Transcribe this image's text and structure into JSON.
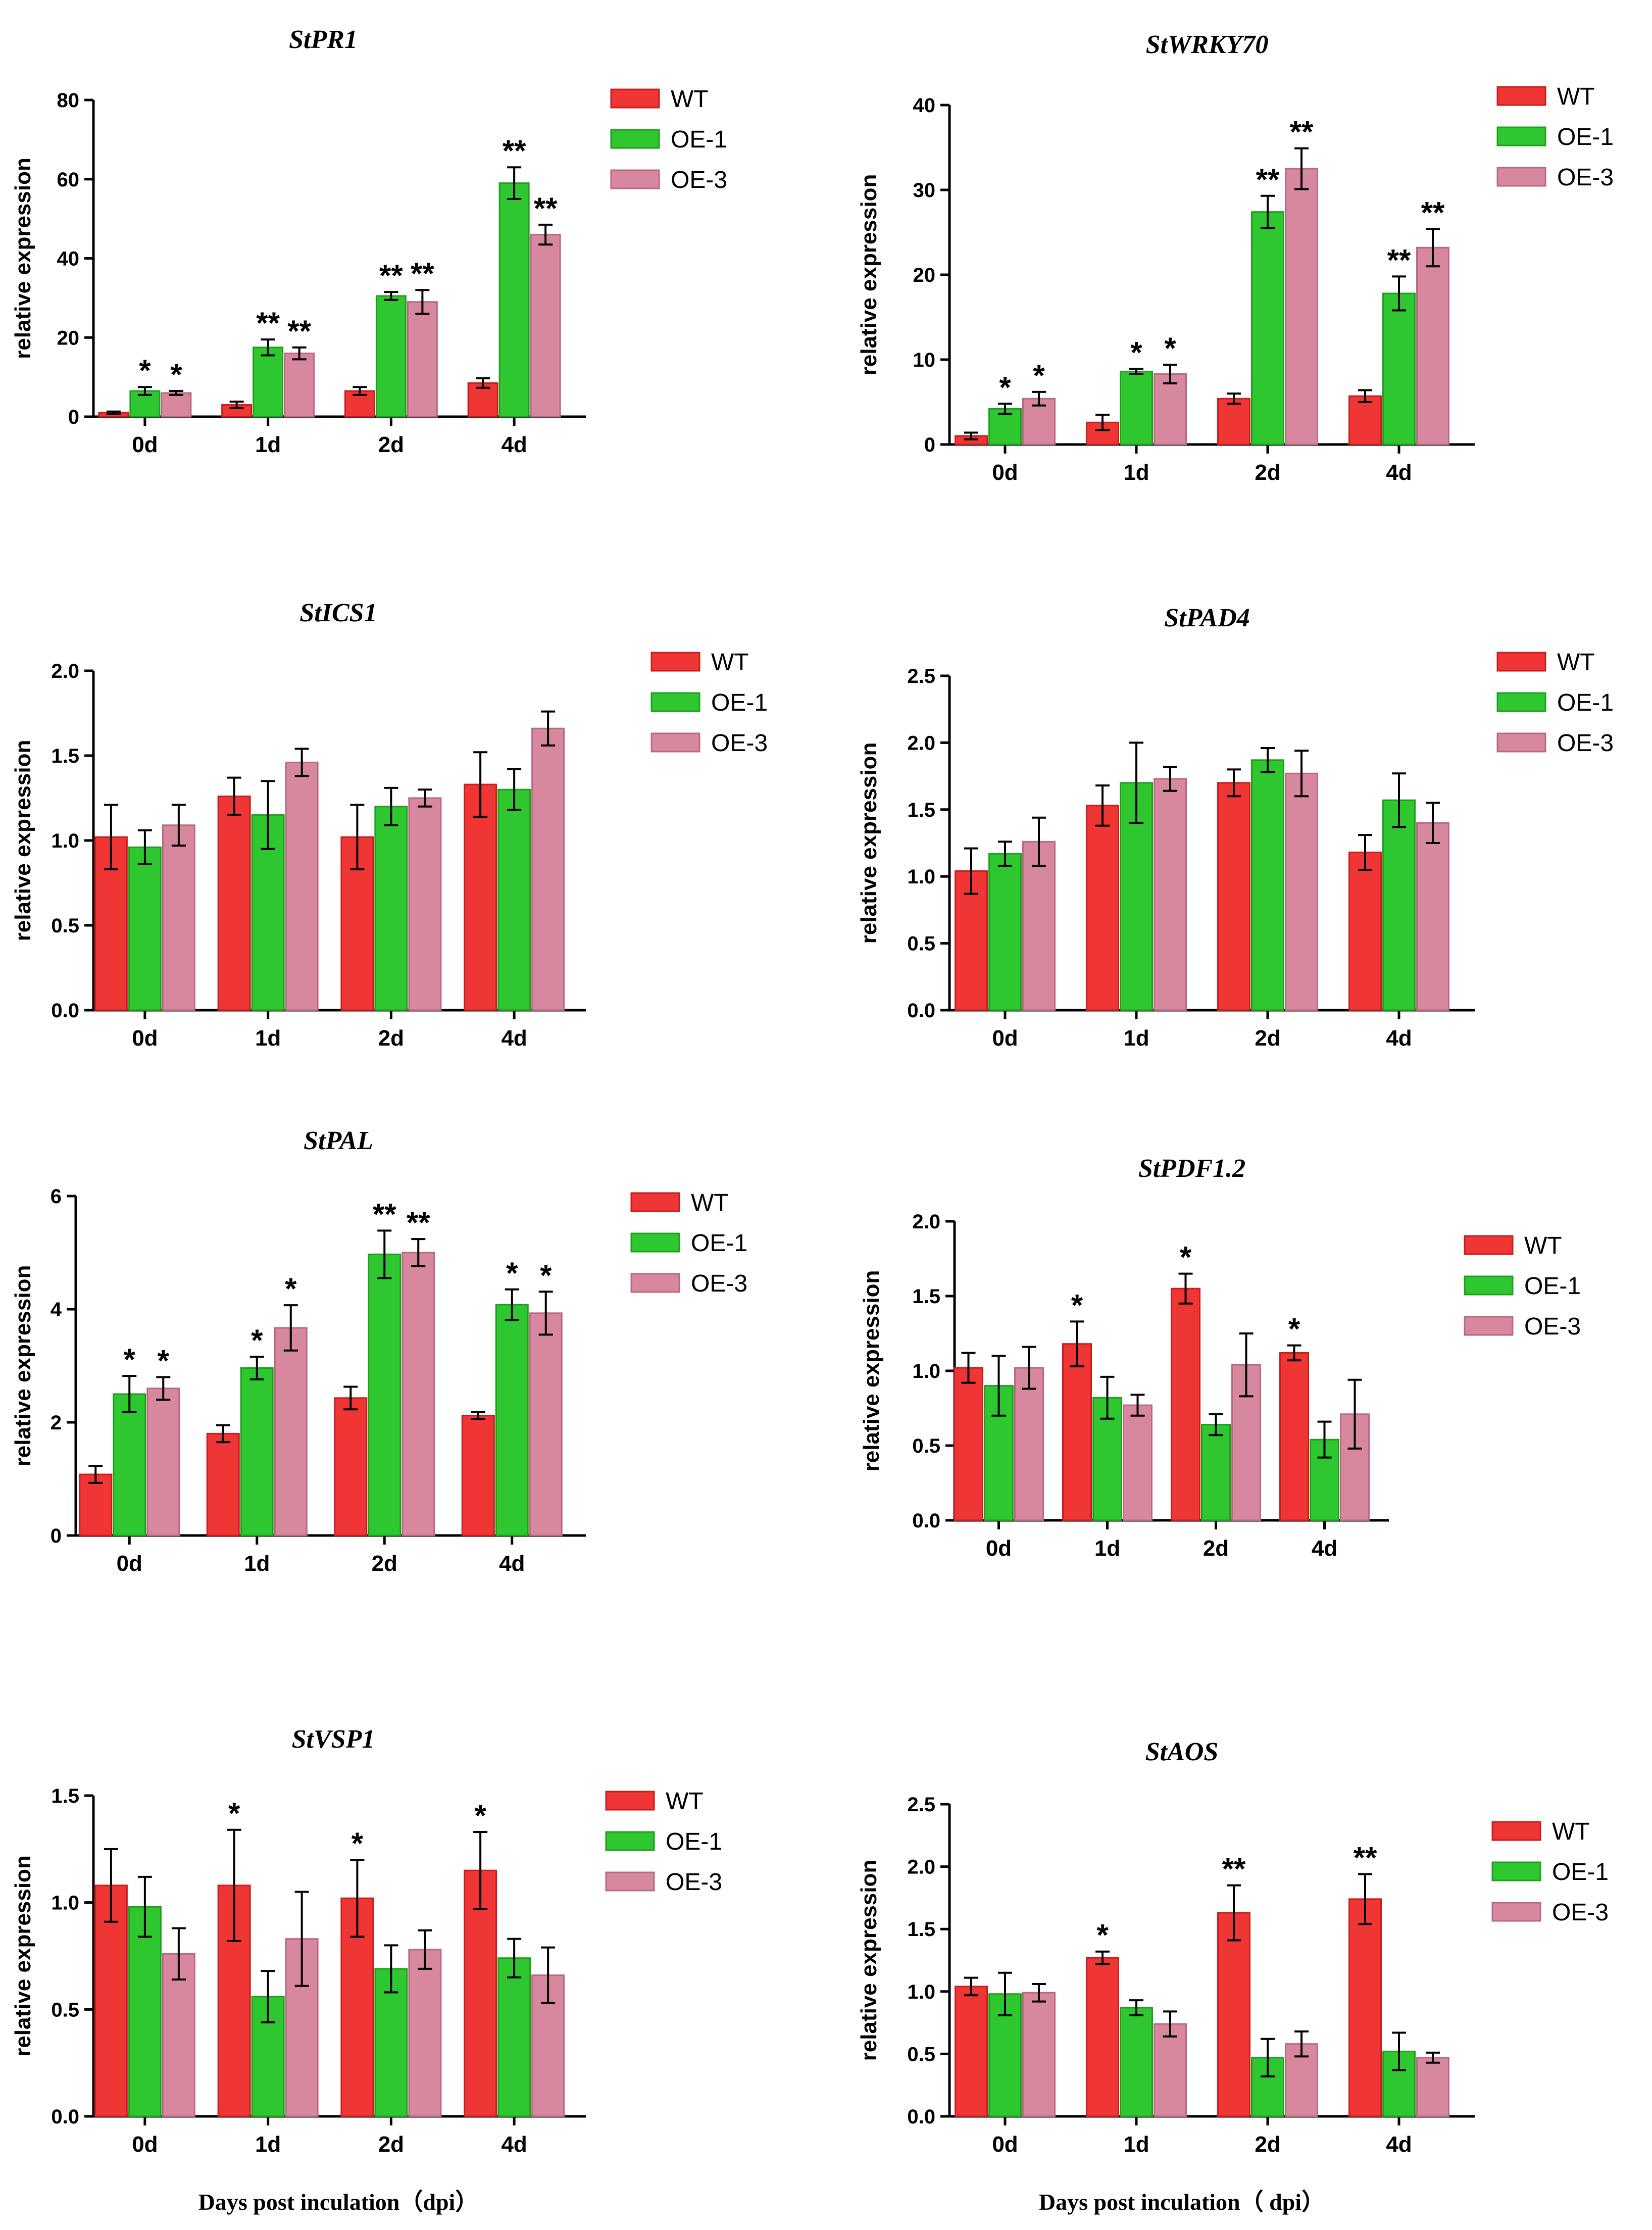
{
  "colors": {
    "WT": "#f03535",
    "OE-1": "#2fc72f",
    "OE-3": "#d7879e",
    "WT_edge": "#c81e1e",
    "OE-1_edge": "#1f9f1f",
    "OE-3_edge": "#b86a80"
  },
  "chart_data": [
    {
      "type": "bar",
      "title": "StPR1",
      "ylabel": "relative expression",
      "xlabel": "",
      "categories": [
        "0d",
        "1d",
        "2d",
        "4d"
      ],
      "ylim": [
        0,
        80
      ],
      "yticks": [
        "0",
        "20",
        "40",
        "60",
        "80"
      ],
      "ytick_values": [
        0,
        20,
        40,
        60,
        80
      ],
      "legend": [
        "WT",
        "OE-1",
        "OE-3"
      ],
      "series": [
        {
          "name": "WT",
          "values": [
            1,
            3,
            6.5,
            8.5
          ],
          "errors": [
            0.3,
            0.8,
            1,
            1.2
          ],
          "sig": [
            "",
            "",
            "",
            ""
          ]
        },
        {
          "name": "OE-1",
          "values": [
            6.5,
            17.5,
            30.5,
            59
          ],
          "errors": [
            1,
            2,
            1,
            4
          ],
          "sig": [
            "*",
            "**",
            "**",
            "**"
          ]
        },
        {
          "name": "OE-3",
          "values": [
            6,
            16,
            29,
            46
          ],
          "errors": [
            0.5,
            1.5,
            3,
            2.5
          ],
          "sig": [
            "*",
            "**",
            "**",
            "**"
          ]
        }
      ]
    },
    {
      "type": "bar",
      "title": "StWRKY70",
      "ylabel": "relative expression",
      "xlabel": "",
      "categories": [
        "0d",
        "1d",
        "2d",
        "4d"
      ],
      "ylim": [
        0,
        40
      ],
      "yticks": [
        "0",
        "10",
        "20",
        "30",
        "40"
      ],
      "ytick_values": [
        0,
        10,
        20,
        30,
        40
      ],
      "legend": [
        "WT",
        "OE-1",
        "OE-3"
      ],
      "series": [
        {
          "name": "WT",
          "values": [
            1,
            2.6,
            5.4,
            5.7
          ],
          "errors": [
            0.4,
            0.9,
            0.6,
            0.7
          ],
          "sig": [
            "",
            "",
            "",
            ""
          ]
        },
        {
          "name": "OE-1",
          "values": [
            4.2,
            8.6,
            27.4,
            17.8
          ],
          "errors": [
            0.6,
            0.3,
            1.9,
            2
          ],
          "sig": [
            "*",
            "*",
            "**",
            "**"
          ]
        },
        {
          "name": "OE-3",
          "values": [
            5.4,
            8.3,
            32.5,
            23.2
          ],
          "errors": [
            0.8,
            1.1,
            2.4,
            2.2
          ],
          "sig": [
            "*",
            "*",
            "**",
            "**"
          ]
        }
      ]
    },
    {
      "type": "bar",
      "title": "StICS1",
      "ylabel": "relative expression",
      "xlabel": "",
      "categories": [
        "0d",
        "1d",
        "2d",
        "4d"
      ],
      "ylim": [
        0,
        2
      ],
      "yticks": [
        "0.0",
        "0.5",
        "1.0",
        "1.5",
        "2.0"
      ],
      "ytick_values": [
        0,
        0.5,
        1,
        1.5,
        2
      ],
      "legend": [
        "WT",
        "OE-1",
        "OE-3"
      ],
      "series": [
        {
          "name": "WT",
          "values": [
            1.02,
            1.26,
            1.02,
            1.33
          ],
          "errors": [
            0.19,
            0.11,
            0.19,
            0.19
          ],
          "sig": [
            "",
            "",
            "",
            ""
          ]
        },
        {
          "name": "OE-1",
          "values": [
            0.96,
            1.15,
            1.2,
            1.3
          ],
          "errors": [
            0.1,
            0.2,
            0.11,
            0.12
          ],
          "sig": [
            "",
            "",
            "",
            ""
          ]
        },
        {
          "name": "OE-3",
          "values": [
            1.09,
            1.46,
            1.25,
            1.66
          ],
          "errors": [
            0.12,
            0.08,
            0.05,
            0.1
          ],
          "sig": [
            "",
            "",
            "",
            ""
          ]
        }
      ]
    },
    {
      "type": "bar",
      "title": "StPAD4",
      "ylabel": "relative expression",
      "xlabel": "",
      "categories": [
        "0d",
        "1d",
        "2d",
        "4d"
      ],
      "ylim": [
        0,
        2.5
      ],
      "yticks": [
        "0.0",
        "0.5",
        "1.0",
        "1.5",
        "2.0",
        "2.5"
      ],
      "ytick_values": [
        0,
        0.5,
        1,
        1.5,
        2,
        2.5
      ],
      "legend": [
        "WT",
        "OE-1",
        "OE-3"
      ],
      "series": [
        {
          "name": "WT",
          "values": [
            1.04,
            1.53,
            1.7,
            1.18
          ],
          "errors": [
            0.17,
            0.15,
            0.1,
            0.13
          ],
          "sig": [
            "",
            "",
            "",
            ""
          ]
        },
        {
          "name": "OE-1",
          "values": [
            1.17,
            1.7,
            1.87,
            1.57
          ],
          "errors": [
            0.09,
            0.3,
            0.09,
            0.2
          ],
          "sig": [
            "",
            "",
            "",
            ""
          ]
        },
        {
          "name": "OE-3",
          "values": [
            1.26,
            1.73,
            1.77,
            1.4
          ],
          "errors": [
            0.18,
            0.09,
            0.17,
            0.15
          ],
          "sig": [
            "",
            "",
            "",
            ""
          ]
        }
      ]
    },
    {
      "type": "bar",
      "title": "StPAL",
      "ylabel": "relative expression",
      "xlabel": "",
      "categories": [
        "0d",
        "1d",
        "2d",
        "4d"
      ],
      "ylim": [
        0,
        6
      ],
      "yticks": [
        "0",
        "2",
        "4",
        "6"
      ],
      "ytick_values": [
        0,
        2,
        4,
        6
      ],
      "legend": [
        "WT",
        "OE-1",
        "OE-3"
      ],
      "series": [
        {
          "name": "WT",
          "values": [
            1.08,
            1.8,
            2.43,
            2.12
          ],
          "errors": [
            0.15,
            0.15,
            0.2,
            0.06
          ],
          "sig": [
            "",
            "",
            "",
            ""
          ]
        },
        {
          "name": "OE-1",
          "values": [
            2.5,
            2.96,
            4.97,
            4.08
          ],
          "errors": [
            0.32,
            0.2,
            0.42,
            0.27
          ],
          "sig": [
            "*",
            "*",
            "**",
            "*"
          ]
        },
        {
          "name": "OE-3",
          "values": [
            2.6,
            3.67,
            5,
            3.93
          ],
          "errors": [
            0.2,
            0.4,
            0.24,
            0.38
          ],
          "sig": [
            "*",
            "*",
            "**",
            "*"
          ]
        }
      ]
    },
    {
      "type": "bar",
      "title": "StPDF1.2",
      "ylabel": "relative expression",
      "xlabel": "",
      "categories": [
        "0d",
        "1d",
        "2d",
        "4d"
      ],
      "ylim": [
        0,
        2
      ],
      "yticks": [
        "0.0",
        "0.5",
        "1.0",
        "1.5",
        "2.0"
      ],
      "ytick_values": [
        0,
        0.5,
        1,
        1.5,
        2
      ],
      "legend": [
        "WT",
        "OE-1",
        "OE-3"
      ],
      "series": [
        {
          "name": "WT",
          "values": [
            1.02,
            1.18,
            1.55,
            1.12
          ],
          "errors": [
            0.1,
            0.15,
            0.1,
            0.05
          ],
          "sig": [
            "",
            "*",
            "*",
            "*"
          ]
        },
        {
          "name": "OE-1",
          "values": [
            0.9,
            0.82,
            0.64,
            0.54
          ],
          "errors": [
            0.2,
            0.14,
            0.07,
            0.12
          ],
          "sig": [
            "",
            "",
            "",
            ""
          ]
        },
        {
          "name": "OE-3",
          "values": [
            1.02,
            0.77,
            1.04,
            0.71
          ],
          "errors": [
            0.14,
            0.07,
            0.21,
            0.23
          ],
          "sig": [
            "",
            "",
            "",
            ""
          ]
        }
      ]
    },
    {
      "type": "bar",
      "title": "StVSP1",
      "ylabel": "relative expression",
      "xlabel": "Days post inculation（dpi）",
      "categories": [
        "0d",
        "1d",
        "2d",
        "4d"
      ],
      "ylim": [
        0,
        1.5
      ],
      "yticks": [
        "0.0",
        "0.5",
        "1.0",
        "1.5"
      ],
      "ytick_values": [
        0,
        0.5,
        1,
        1.5
      ],
      "legend": [
        "WT",
        "OE-1",
        "OE-3"
      ],
      "series": [
        {
          "name": "WT",
          "values": [
            1.08,
            1.08,
            1.02,
            1.15
          ],
          "errors": [
            0.17,
            0.26,
            0.18,
            0.18
          ],
          "sig": [
            "",
            "*",
            "*",
            "*"
          ]
        },
        {
          "name": "OE-1",
          "values": [
            0.98,
            0.56,
            0.69,
            0.74
          ],
          "errors": [
            0.14,
            0.12,
            0.11,
            0.09
          ],
          "sig": [
            "",
            "",
            "",
            ""
          ]
        },
        {
          "name": "OE-3",
          "values": [
            0.76,
            0.83,
            0.78,
            0.66
          ],
          "errors": [
            0.12,
            0.22,
            0.09,
            0.13
          ],
          "sig": [
            "",
            "",
            "",
            ""
          ]
        }
      ]
    },
    {
      "type": "bar",
      "title": "StAOS",
      "ylabel": "relative expression",
      "xlabel": "Days post inculation（ dpi）",
      "categories": [
        "0d",
        "1d",
        "2d",
        "4d"
      ],
      "ylim": [
        0,
        2.5
      ],
      "yticks": [
        "0.0",
        "0.5",
        "1.0",
        "1.5",
        "2.0",
        "2.5"
      ],
      "ytick_values": [
        0,
        0.5,
        1,
        1.5,
        2,
        2.5
      ],
      "legend": [
        "WT",
        "OE-1",
        "OE-3"
      ],
      "series": [
        {
          "name": "WT",
          "values": [
            1.04,
            1.27,
            1.63,
            1.74
          ],
          "errors": [
            0.07,
            0.05,
            0.22,
            0.2
          ],
          "sig": [
            "",
            "*",
            "**",
            "**"
          ]
        },
        {
          "name": "OE-1",
          "values": [
            0.98,
            0.87,
            0.47,
            0.52
          ],
          "errors": [
            0.17,
            0.06,
            0.15,
            0.15
          ],
          "sig": [
            "",
            "",
            "",
            ""
          ]
        },
        {
          "name": "OE-3",
          "values": [
            0.99,
            0.74,
            0.58,
            0.47
          ],
          "errors": [
            0.07,
            0.1,
            0.1,
            0.04
          ],
          "sig": [
            "",
            "",
            "",
            ""
          ]
        }
      ]
    }
  ]
}
